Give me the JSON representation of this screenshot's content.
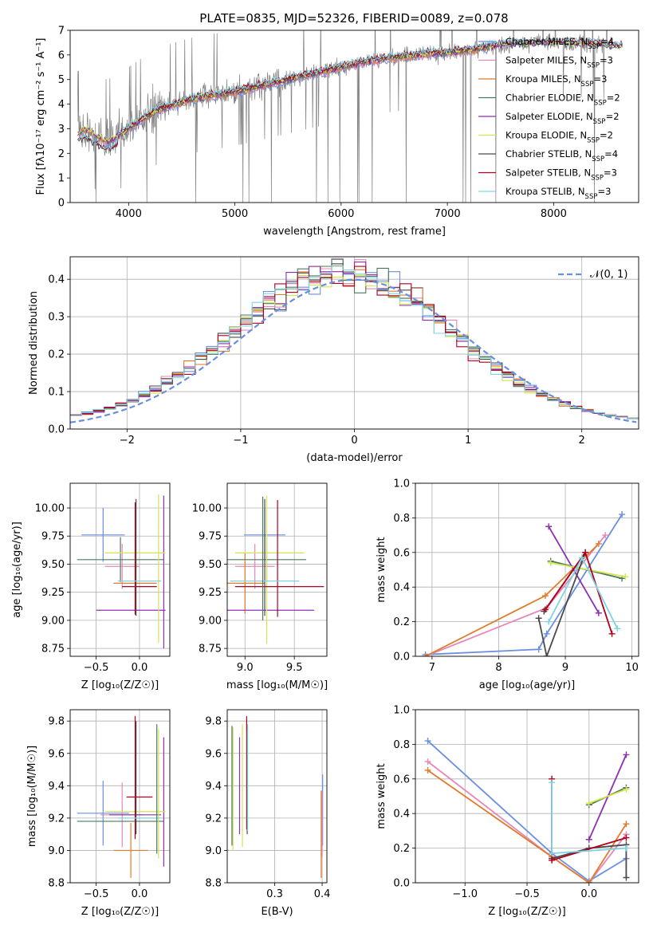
{
  "figure": {
    "title": "PLATE=0835, MJD=52326, FIBERID=0089, z=0.078"
  },
  "palette": {
    "Chabrier MILES": "#6a8fdf",
    "Salpeter MILES": "#e587b8",
    "Kroupa MILES": "#e07b2a",
    "Chabrier ELODIE": "#4b7a5a",
    "Salpeter ELODIE": "#8e2fb0",
    "Kroupa ELODIE": "#d4e64f",
    "Chabrier STELIB": "#4a4a4a",
    "Salpeter STELIB": "#b0001a",
    "Kroupa STELIB": "#7fd3e6",
    "data": "#808080",
    "gaussian": "#6a8fdf"
  },
  "chart_data": [
    {
      "id": "spectrum",
      "type": "line",
      "xlabel": "wavelength [Angstrom, rest frame]",
      "ylabel": "Flux [fλ10⁻¹⁷ erg cm⁻² s⁻¹ A⁻¹]",
      "xlim": [
        3450,
        8800
      ],
      "ylim": [
        0,
        7
      ],
      "xticks": [
        4000,
        5000,
        6000,
        7000,
        8000
      ],
      "yticks": [
        0,
        1,
        2,
        3,
        4,
        5,
        6,
        7
      ],
      "legend_position": "top-right",
      "legend": [
        {
          "label": "Chabrier MILES, N",
          "sub": "SSP",
          "suffix": "=4"
        },
        {
          "label": "Salpeter MILES, N",
          "sub": "SSP",
          "suffix": "=3"
        },
        {
          "label": "Kroupa MILES, N",
          "sub": "SSP",
          "suffix": "=3"
        },
        {
          "label": "Chabrier ELODIE, N",
          "sub": "SSP",
          "suffix": "=2"
        },
        {
          "label": "Salpeter ELODIE, N",
          "sub": "SSP",
          "suffix": "=2"
        },
        {
          "label": "Kroupa ELODIE, N",
          "sub": "SSP",
          "suffix": "=2"
        },
        {
          "label": "Chabrier STELIB, N",
          "sub": "SSP",
          "suffix": "=4"
        },
        {
          "label": "Salpeter STELIB, N",
          "sub": "SSP",
          "suffix": "=3"
        },
        {
          "label": "Kroupa STELIB, N",
          "sub": "SSP",
          "suffix": "=3"
        }
      ],
      "continuum": {
        "x": [
          3500,
          3600,
          3700,
          3800,
          3900,
          4000,
          4100,
          4200,
          4300,
          4500,
          4700,
          5000,
          5300,
          5600,
          5900,
          6200,
          6500,
          6800,
          7000,
          7200,
          7400,
          7600,
          8000,
          8400,
          8700
        ],
        "y": [
          2.8,
          3.0,
          2.7,
          2.5,
          2.7,
          3.0,
          3.3,
          3.6,
          3.8,
          4.1,
          4.3,
          4.5,
          4.8,
          5.1,
          5.4,
          5.7,
          5.9,
          6.05,
          6.1,
          6.2,
          6.35,
          6.45,
          6.5,
          6.45,
          6.3
        ]
      }
    },
    {
      "id": "residuals",
      "type": "line",
      "xlabel": "(data-model)/error",
      "ylabel": "Normed distribution",
      "xlim": [
        -2.5,
        2.5
      ],
      "ylim": [
        0,
        0.46
      ],
      "xticks": [
        -2,
        -1,
        0,
        1,
        2
      ],
      "yticks": [
        0.0,
        0.1,
        0.2,
        0.3,
        0.4
      ],
      "legend_position": "top-right",
      "legend": [
        {
          "label": "𝒩(0, 1)"
        }
      ],
      "bin_width": 0.1
    },
    {
      "id": "age-vs-Z",
      "type": "scatter",
      "xlabel": "Z [log₁₀(Z/Z☉)]",
      "ylabel": "age  [log₁₀(age/yr)]",
      "xlim": [
        -0.8,
        0.35
      ],
      "ylim": [
        8.68,
        10.22
      ],
      "xticks": [
        -0.5,
        0.0
      ],
      "yticks": [
        8.75,
        9.0,
        9.25,
        9.5,
        9.75,
        10.0
      ],
      "series": [
        {
          "key": "Chabrier MILES",
          "x": -0.42,
          "y": 9.76,
          "xerr": 0.25,
          "yerr": 0.24
        },
        {
          "key": "Salpeter MILES",
          "x": -0.2,
          "y": 9.48,
          "xerr": 0.2,
          "yerr": 0.2
        },
        {
          "key": "Kroupa MILES",
          "x": -0.05,
          "y": 9.33,
          "xerr": 0.25,
          "yerr": 0.27
        },
        {
          "key": "Chabrier ELODIE",
          "x": -0.22,
          "y": 9.54,
          "xerr": 0.5,
          "yerr": 0.2
        },
        {
          "key": "Salpeter ELODIE",
          "x": 0.28,
          "y": 9.43,
          "xerr": 0.0,
          "yerr": 0.68
        },
        {
          "key": "Salpeter ELODIE",
          "x": -0.1,
          "y": 9.09,
          "xerr": 0.4,
          "yerr": 0.0
        },
        {
          "key": "Kroupa ELODIE",
          "x": 0.22,
          "y": 9.46,
          "xerr": 0.0,
          "yerr": 0.66
        },
        {
          "key": "Kroupa ELODIE",
          "x": -0.05,
          "y": 9.6,
          "xerr": 0.35,
          "yerr": 0.0
        },
        {
          "key": "Chabrier STELIB",
          "x": -0.04,
          "y": 9.56,
          "xerr": 0.0,
          "yerr": 0.52
        },
        {
          "key": "Salpeter STELIB",
          "x": 0.0,
          "y": 9.3,
          "xerr": 0.2,
          "yerr": 0.0
        },
        {
          "key": "Salpeter STELIB",
          "x": -0.05,
          "y": 9.55,
          "xerr": 0.0,
          "yerr": 0.5
        },
        {
          "key": "Kroupa STELIB",
          "x": 0.0,
          "y": 9.35,
          "xerr": 0.25,
          "yerr": 0.0
        }
      ]
    },
    {
      "id": "age-vs-mass",
      "type": "scatter",
      "xlabel": "mass [log₁₀(M/M☉)]",
      "ylabel": "",
      "xlim": [
        8.82,
        9.83
      ],
      "ylim": [
        8.68,
        10.22
      ],
      "xticks": [
        9.0,
        9.5
      ],
      "yticks": [
        8.75,
        9.0,
        9.25,
        9.5,
        9.75,
        10.0
      ],
      "series": [
        {
          "key": "Chabrier MILES",
          "x": 9.2,
          "y": 9.76,
          "xerr": 0.21,
          "yerr": 0.24
        },
        {
          "key": "Salpeter MILES",
          "x": 9.1,
          "y": 9.48,
          "xerr": 0.2,
          "yerr": 0.2
        },
        {
          "key": "Kroupa MILES",
          "x": 9.0,
          "y": 9.33,
          "xerr": 0.2,
          "yerr": 0.27
        },
        {
          "key": "Chabrier ELODIE",
          "x": 9.22,
          "y": 9.54,
          "xerr": 0.4,
          "yerr": 0.2
        },
        {
          "key": "Salpeter ELODIE",
          "x": 9.25,
          "y": 9.09,
          "xerr": 0.45,
          "yerr": 0.0
        },
        {
          "key": "Kroupa ELODIE",
          "x": 9.25,
          "y": 9.6,
          "xerr": 0.35,
          "yerr": 0.0
        },
        {
          "key": "Kroupa ELODIE",
          "x": 9.22,
          "y": 9.45,
          "xerr": 0.0,
          "yerr": 0.66
        },
        {
          "key": "Chabrier STELIB",
          "x": 9.2,
          "y": 9.56,
          "xerr": 0.0,
          "yerr": 0.52
        },
        {
          "key": "Salpeter STELIB",
          "x": 9.35,
          "y": 9.3,
          "xerr": 0.45,
          "yerr": 0.0
        },
        {
          "key": "Salpeter STELIB",
          "x": 9.33,
          "y": 9.55,
          "xerr": 0.0,
          "yerr": 0.52
        },
        {
          "key": "Kroupa STELIB",
          "x": 9.2,
          "y": 9.35,
          "xerr": 0.35,
          "yerr": 0.0
        },
        {
          "key": "Chabrier ELODIE",
          "x": 9.18,
          "y": 9.55,
          "xerr": 0.0,
          "yerr": 0.55
        }
      ]
    },
    {
      "id": "weight-vs-age",
      "type": "line",
      "xlabel": "age  [log₁₀(age/yr)]",
      "ylabel": "mass weight",
      "xlim": [
        6.75,
        10.1
      ],
      "ylim": [
        0,
        1.0
      ],
      "xticks": [
        7,
        8,
        9,
        10
      ],
      "yticks": [
        0.0,
        0.2,
        0.4,
        0.6,
        0.8,
        1.0
      ],
      "series": [
        {
          "key": "Chabrier MILES",
          "x": [
            6.9,
            8.6,
            8.72,
            9.85
          ],
          "y": [
            0.01,
            0.04,
            0.13,
            0.82
          ]
        },
        {
          "key": "Salpeter MILES",
          "x": [
            6.9,
            8.72,
            9.6
          ],
          "y": [
            0.0,
            0.28,
            0.7
          ]
        },
        {
          "key": "Kroupa MILES",
          "x": [
            6.9,
            8.7,
            9.5
          ],
          "y": [
            0.0,
            0.35,
            0.65
          ]
        },
        {
          "key": "Chabrier ELODIE",
          "x": [
            8.78,
            9.85
          ],
          "y": [
            0.55,
            0.45
          ]
        },
        {
          "key": "Salpeter ELODIE",
          "x": [
            8.75,
            9.5
          ],
          "y": [
            0.75,
            0.25
          ]
        },
        {
          "key": "Kroupa ELODIE",
          "x": [
            8.78,
            9.9
          ],
          "y": [
            0.54,
            0.46
          ]
        },
        {
          "key": "Chabrier STELIB",
          "x": [
            8.6,
            8.72,
            9.3,
            8.68
          ],
          "y": [
            0.22,
            0.0,
            0.6,
            0.26
          ]
        },
        {
          "key": "Salpeter STELIB",
          "x": [
            8.7,
            9.3,
            9.7
          ],
          "y": [
            0.27,
            0.6,
            0.13
          ]
        },
        {
          "key": "Kroupa STELIB",
          "x": [
            8.75,
            9.25,
            9.78
          ],
          "y": [
            0.2,
            0.57,
            0.16
          ]
        }
      ]
    },
    {
      "id": "mass-vs-Z",
      "type": "scatter",
      "xlabel": "Z [log₁₀(Z/Z☉)]",
      "ylabel": "mass [log₁₀(M/M☉)]",
      "xlim": [
        -0.8,
        0.35
      ],
      "ylim": [
        8.8,
        9.87
      ],
      "xticks": [
        -0.5,
        0.0
      ],
      "yticks": [
        8.8,
        9.0,
        9.2,
        9.4,
        9.6,
        9.8
      ],
      "series": [
        {
          "key": "Chabrier MILES",
          "x": -0.42,
          "y": 9.23,
          "xerr": 0.3,
          "yerr": 0.2
        },
        {
          "key": "Salpeter MILES",
          "x": -0.2,
          "y": 9.22,
          "xerr": 0.25,
          "yerr": 0.2
        },
        {
          "key": "Kroupa MILES",
          "x": -0.1,
          "y": 9.0,
          "xerr": 0.2,
          "yerr": 0.17
        },
        {
          "key": "Chabrier ELODIE",
          "x": -0.22,
          "y": 9.18,
          "xerr": 0.5,
          "yerr": 0.0
        },
        {
          "key": "Salpeter ELODIE",
          "x": 0.28,
          "y": 9.3,
          "xerr": 0.0,
          "yerr": 0.4
        },
        {
          "key": "Salpeter ELODIE",
          "x": -0.05,
          "y": 9.22,
          "xerr": 0.3,
          "yerr": 0.0
        },
        {
          "key": "Kroupa ELODIE",
          "x": 0.22,
          "y": 9.35,
          "xerr": 0.0,
          "yerr": 0.4
        },
        {
          "key": "Kroupa ELODIE",
          "x": -0.05,
          "y": 9.24,
          "xerr": 0.35,
          "yerr": 0.0
        },
        {
          "key": "Chabrier STELIB",
          "x": -0.04,
          "y": 9.45,
          "xerr": 0.0,
          "yerr": 0.35
        },
        {
          "key": "Salpeter STELIB",
          "x": 0.0,
          "y": 9.33,
          "xerr": 0.15,
          "yerr": 0.0
        },
        {
          "key": "Salpeter STELIB",
          "x": -0.05,
          "y": 9.45,
          "xerr": 0.0,
          "yerr": 0.38
        },
        {
          "key": "Kroupa STELIB",
          "x": 0.0,
          "y": 9.2,
          "xerr": 0.25,
          "yerr": 0.0
        },
        {
          "key": "Chabrier ELODIE",
          "x": 0.2,
          "y": 9.38,
          "xerr": 0.0,
          "yerr": 0.4
        }
      ]
    },
    {
      "id": "mass-vs-ebv",
      "type": "scatter",
      "xlabel": "E(B-V)",
      "ylabel": "",
      "xlim": [
        0.2,
        0.41
      ],
      "ylim": [
        8.8,
        9.87
      ],
      "xticks": [
        0.3,
        0.4
      ],
      "yticks": [
        8.8,
        9.0,
        9.2,
        9.4,
        9.6,
        9.8
      ],
      "series": [
        {
          "key": "Kroupa ELODIE",
          "x": 0.212,
          "y": 9.38,
          "xerr": 0.0,
          "yerr": 0.38
        },
        {
          "key": "Chabrier ELODIE",
          "x": 0.21,
          "y": 9.4,
          "xerr": 0.0,
          "yerr": 0.37
        },
        {
          "key": "Salpeter ELODIE",
          "x": 0.226,
          "y": 9.4,
          "xerr": 0.0,
          "yerr": 0.3
        },
        {
          "key": "Kroupa ELODIE",
          "x": 0.232,
          "y": 9.4,
          "xerr": 0.0,
          "yerr": 0.38
        },
        {
          "key": "Salpeter STELIB",
          "x": 0.241,
          "y": 9.48,
          "xerr": 0.0,
          "yerr": 0.35
        },
        {
          "key": "Chabrier STELIB",
          "x": 0.242,
          "y": 9.42,
          "xerr": 0.0,
          "yerr": 0.32
        },
        {
          "key": "Kroupa STELIB",
          "x": 0.243,
          "y": 9.45,
          "xerr": 0.0,
          "yerr": 0.33
        },
        {
          "key": "Kroupa MILES",
          "x": 0.398,
          "y": 9.1,
          "xerr": 0.0,
          "yerr": 0.27
        },
        {
          "key": "Chabrier MILES",
          "x": 0.401,
          "y": 9.25,
          "xerr": 0.0,
          "yerr": 0.22
        },
        {
          "key": "Salpeter MILES",
          "x": 0.4,
          "y": 9.16,
          "xerr": 0.0,
          "yerr": 0.2
        }
      ]
    },
    {
      "id": "weight-vs-Z",
      "type": "line",
      "xlabel": "Z [log₁₀(Z/Z☉)]",
      "ylabel": "mass weight",
      "xlim": [
        -1.4,
        0.4
      ],
      "ylim": [
        0,
        1.0
      ],
      "xticks": [
        -1.0,
        -0.5,
        0.0
      ],
      "yticks": [
        0.0,
        0.2,
        0.4,
        0.6,
        0.8,
        1.0
      ],
      "series": [
        {
          "key": "Chabrier MILES",
          "x": [
            -1.3,
            -0.3,
            0.0,
            0.3
          ],
          "y": [
            0.82,
            0.17,
            0.01,
            0.14
          ]
        },
        {
          "key": "Salpeter MILES",
          "x": [
            -1.3,
            -0.3,
            0.0,
            0.3
          ],
          "y": [
            0.7,
            0.15,
            0.0,
            0.28
          ]
        },
        {
          "key": "Kroupa MILES",
          "x": [
            -1.3,
            -0.3,
            0.0,
            0.3
          ],
          "y": [
            0.65,
            0.15,
            0.0,
            0.34
          ]
        },
        {
          "key": "Chabrier ELODIE",
          "x": [
            0.0,
            0.3
          ],
          "y": [
            0.45,
            0.55
          ]
        },
        {
          "key": "Salpeter ELODIE",
          "x": [
            0.0,
            0.3
          ],
          "y": [
            0.25,
            0.74
          ]
        },
        {
          "key": "Kroupa ELODIE",
          "x": [
            0.0,
            0.3
          ],
          "y": [
            0.46,
            0.54
          ]
        },
        {
          "key": "Chabrier STELIB",
          "x": [
            -0.3,
            0.0,
            0.3,
            0.3
          ],
          "y": [
            0.14,
            0.2,
            0.22,
            0.03
          ]
        },
        {
          "key": "Salpeter STELIB",
          "x": [
            -0.3,
            -0.3,
            0.3
          ],
          "y": [
            0.6,
            0.13,
            0.26
          ]
        },
        {
          "key": "Kroupa STELIB",
          "x": [
            -0.3,
            -0.3,
            0.3
          ],
          "y": [
            0.58,
            0.17,
            0.2
          ]
        }
      ]
    }
  ]
}
